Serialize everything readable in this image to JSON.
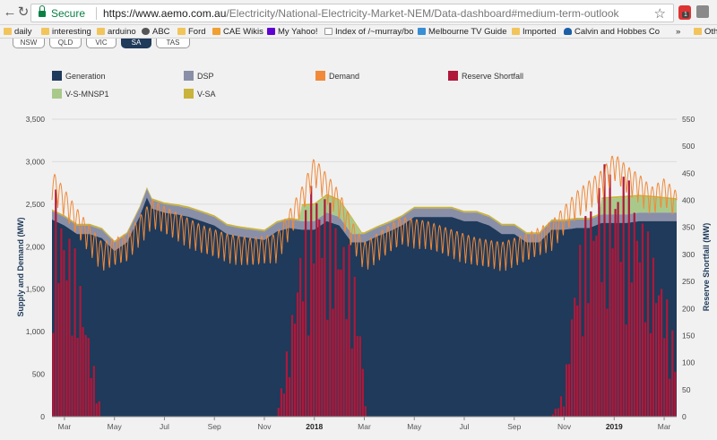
{
  "browser": {
    "secure_label": "Secure",
    "url_host": "https://www.aemo.com.au",
    "url_path": "/Electricity/National-Electricity-Market-NEM/Data-dashboard#medium-term-outlook",
    "bookmarks": [
      "daily",
      "interesting",
      "arduino",
      "ABC",
      "Ford",
      "CAE Wikis",
      "My Yahoo!",
      "Index of /~murray/bo",
      "Melbourne TV Guide",
      "Imported",
      "Calvin and Hobbes Co",
      "Oth"
    ],
    "ext_badge": "1"
  },
  "state_tabs": [
    "NSW",
    "QLD",
    "VIC",
    "SA",
    "TAS"
  ],
  "active_state": "SA",
  "legend": [
    {
      "label": "Generation",
      "color": "#1f3a5a"
    },
    {
      "label": "DSP",
      "color": "#8a8fa8"
    },
    {
      "label": "Demand",
      "color": "#f08a3a"
    },
    {
      "label": "Reserve Shortfall",
      "color": "#b0183a"
    },
    {
      "label": "V-S-MNSP1",
      "color": "#a9c98a"
    },
    {
      "label": "V-SA",
      "color": "#c9b33a"
    }
  ],
  "chart_data": {
    "type": "area",
    "xlabel": "",
    "ylabel": "Supply and Demand (MW)",
    "y2label": "Reserve Shortfall (MW)",
    "ylim": [
      0,
      3500
    ],
    "y2lim": [
      0,
      550
    ],
    "yticks": [
      "0",
      "500",
      "1,000",
      "1,500",
      "2,000",
      "2,500",
      "3,000",
      "3,500"
    ],
    "y2ticks": [
      "0",
      "50",
      "100",
      "150",
      "200",
      "250",
      "300",
      "350",
      "400",
      "450",
      "500",
      "550"
    ],
    "x_ticks": [
      "Mar",
      "May",
      "Jul",
      "Sep",
      "Nov",
      "2018",
      "Mar",
      "May",
      "Jul",
      "Sep",
      "Nov",
      "2019",
      "Mar"
    ],
    "x_range_months": [
      0,
      25
    ],
    "series": [
      {
        "name": "Generation",
        "months": [
          0,
          0.5,
          1,
          1.5,
          2,
          2.5,
          3,
          3.5,
          3.8,
          4,
          4.5,
          5,
          5.5,
          6,
          6.5,
          7,
          7.5,
          8,
          8.5,
          9,
          9.5,
          10,
          10.5,
          11,
          11.5,
          12,
          12.5,
          13,
          13.5,
          14,
          14.5,
          15,
          15.5,
          16,
          16.5,
          17,
          17.5,
          18,
          18.5,
          19,
          19.5,
          20,
          20.5,
          21,
          21.5,
          22,
          22.5,
          23,
          23.5,
          24,
          24.5,
          25
        ],
        "values": [
          2320,
          2250,
          2150,
          2150,
          2100,
          1950,
          2050,
          2350,
          2580,
          2450,
          2400,
          2380,
          2350,
          2300,
          2250,
          2150,
          2120,
          2100,
          2080,
          2180,
          2220,
          2200,
          2200,
          2300,
          2250,
          2050,
          2050,
          2120,
          2180,
          2250,
          2350,
          2350,
          2350,
          2350,
          2300,
          2300,
          2250,
          2150,
          2150,
          2050,
          2050,
          2200,
          2200,
          2220,
          2220,
          2280,
          2280,
          2280,
          2300,
          2300,
          2300,
          2300
        ]
      },
      {
        "name": "DSP",
        "offset_mw": 100
      },
      {
        "name": "V-S-MNSP1",
        "months": [
          0,
          1,
          2,
          3,
          4,
          5,
          6,
          7,
          8,
          9,
          9.9,
          10,
          11,
          12,
          12.4,
          13,
          14,
          15,
          16,
          17,
          18,
          19,
          20,
          21,
          21.9,
          22,
          23,
          24,
          25
        ],
        "values": [
          0,
          0,
          0,
          0,
          0,
          0,
          0,
          0,
          0,
          0,
          0,
          180,
          200,
          180,
          0,
          0,
          0,
          0,
          0,
          0,
          0,
          0,
          0,
          0,
          0,
          180,
          200,
          180,
          150
        ]
      },
      {
        "name": "V-SA",
        "offset_mw": 20
      },
      {
        "name": "Demand",
        "months": [
          0,
          1,
          2,
          3,
          4,
          5,
          6,
          7,
          8,
          9,
          10,
          10.5,
          11,
          11.5,
          12,
          12.5,
          13,
          14,
          15,
          16,
          17,
          18,
          19,
          20,
          21,
          22,
          22.5,
          23,
          23.5,
          24,
          24.5,
          25
        ],
        "values": [
          2900,
          2450,
          2050,
          2150,
          2550,
          2400,
          2250,
          2150,
          2100,
          2150,
          2700,
          3050,
          2850,
          2650,
          2300,
          2050,
          2150,
          2350,
          2300,
          2200,
          2100,
          2050,
          2150,
          2300,
          2650,
          2900,
          3100,
          2950,
          2850,
          2700,
          2800,
          2650
        ]
      },
      {
        "name": "Reserve Shortfall",
        "months": [
          0,
          1,
          2,
          3,
          4,
          5,
          6,
          7,
          8,
          9,
          9.5,
          10,
          10.5,
          11,
          11.5,
          12,
          12.3,
          12.6,
          13,
          14,
          15,
          16,
          17,
          18,
          19,
          20,
          20.5,
          21,
          21.5,
          22,
          22.5,
          23,
          23.5,
          24,
          24.5,
          25
        ],
        "values": [
          450,
          300,
          0,
          0,
          0,
          0,
          0,
          0,
          0,
          0,
          150,
          350,
          460,
          410,
          360,
          310,
          200,
          0,
          0,
          0,
          0,
          0,
          0,
          0,
          0,
          0,
          50,
          300,
          400,
          470,
          460,
          450,
          400,
          320,
          250,
          120
        ]
      }
    ]
  }
}
